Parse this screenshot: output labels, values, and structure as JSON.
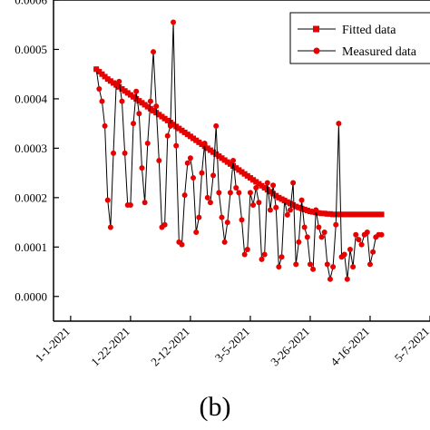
{
  "panel_label": "(b)",
  "chart_data": {
    "type": "line",
    "title": "",
    "xlabel": "",
    "ylabel": "",
    "x_ticks": [
      "1-1-2021",
      "1-22-2021",
      "2-12-2021",
      "3-5-2021",
      "3-26-2021",
      "4-16-2021",
      "5-7-2021"
    ],
    "y_ticks": [
      "0.0000",
      "0.0001",
      "0.0002",
      "0.0003",
      "0.0004",
      "0.0005",
      "0.0006"
    ],
    "xlim": [
      "2020-12-26",
      "2021-05-07"
    ],
    "ylim": [
      -5e-05,
      0.0006
    ],
    "grid": false,
    "legend_position": "top-right",
    "colors": {
      "line": "#000000",
      "marker": "#e60000",
      "axis": "#000000"
    },
    "series": [
      {
        "name": "Fitted data",
        "marker": "square",
        "x_start": "2021-01-10",
        "x_step_days": 1,
        "values": [
          0.00046,
          0.000455,
          0.00045,
          0.000445,
          0.00044,
          0.000436,
          0.000432,
          0.000428,
          0.000424,
          0.00042,
          0.000416,
          0.000412,
          0.000408,
          0.000404,
          0.0004,
          0.000396,
          0.000392,
          0.000388,
          0.000384,
          0.00038,
          0.000376,
          0.000372,
          0.000368,
          0.000364,
          0.00036,
          0.000356,
          0.000352,
          0.000348,
          0.000344,
          0.00034,
          0.000336,
          0.000332,
          0.000328,
          0.000324,
          0.00032,
          0.000316,
          0.000312,
          0.000308,
          0.000304,
          0.0003,
          0.000296,
          0.000292,
          0.000288,
          0.000284,
          0.00028,
          0.000276,
          0.000272,
          0.000268,
          0.000264,
          0.00026,
          0.000256,
          0.000252,
          0.000248,
          0.000244,
          0.00024,
          0.000236,
          0.000232,
          0.000228,
          0.000224,
          0.00022,
          0.000216,
          0.000212,
          0.000208,
          0.000204,
          0.0002,
          0.000197,
          0.000194,
          0.000191,
          0.000188,
          0.000185,
          0.000182,
          0.00018,
          0.000178,
          0.000176,
          0.000174,
          0.000172,
          0.000171,
          0.00017,
          0.000169,
          0.000168,
          0.000168,
          0.000167,
          0.000167,
          0.000166,
          0.000166,
          0.000166,
          0.000166,
          0.000166,
          0.000166,
          0.000166,
          0.000166,
          0.000166,
          0.000166,
          0.000166,
          0.000166,
          0.000166,
          0.000166,
          0.000166,
          0.000166,
          0.000166,
          0.000166
        ]
      },
      {
        "name": "Measured data",
        "marker": "circle",
        "x_start": "2021-01-10",
        "x_step_days": 1,
        "values": [
          0.00046,
          0.00042,
          0.000395,
          0.000345,
          0.000195,
          0.00014,
          0.00029,
          0.00043,
          0.000435,
          0.000395,
          0.00029,
          0.000185,
          0.000185,
          0.00035,
          0.000415,
          0.00037,
          0.00026,
          0.00019,
          0.00031,
          0.000395,
          0.000495,
          0.000385,
          0.000275,
          0.00014,
          0.000145,
          0.000325,
          0.000345,
          0.000555,
          0.000305,
          0.00011,
          0.000105,
          0.000205,
          0.00027,
          0.00028,
          0.00024,
          0.00013,
          0.00016,
          0.00025,
          0.00031,
          0.0002,
          0.00019,
          0.000245,
          0.000345,
          0.00021,
          0.00016,
          0.00011,
          0.00015,
          0.00021,
          0.000275,
          0.00022,
          0.00021,
          0.000155,
          8.5e-05,
          9.5e-05,
          0.00021,
          0.000185,
          0.00022,
          0.00019,
          7.5e-05,
          8.5e-05,
          0.00023,
          0.000175,
          0.000225,
          0.00018,
          6e-05,
          8e-05,
          0.000195,
          0.000165,
          0.000175,
          0.00023,
          6.5e-05,
          0.00011,
          0.000195,
          0.00014,
          0.00012,
          6.5e-05,
          5.5e-05,
          0.000175,
          0.00014,
          0.00012,
          0.00013,
          6.5e-05,
          3.5e-05,
          6e-05,
          0.000145,
          0.00035,
          8e-05,
          8.5e-05,
          3.5e-05,
          9.5e-05,
          6e-05,
          0.000125,
          0.000115,
          0.000105,
          0.000125,
          0.00013,
          6.5e-05,
          9e-05,
          0.00012,
          0.000125,
          0.000125
        ]
      }
    ]
  }
}
